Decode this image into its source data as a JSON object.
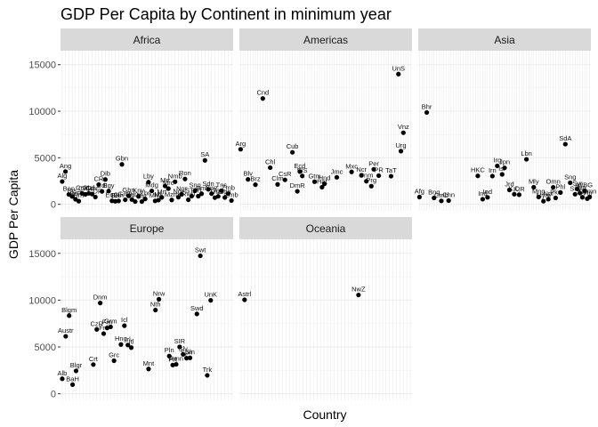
{
  "chart_data": {
    "type": "scatter",
    "title": "GDP Per Capita by Continent in minimum year",
    "xlabel": "Country",
    "ylabel": "GDP Per Capita",
    "ylim": [
      -700,
      16500
    ],
    "y_ticks": [
      0,
      5000,
      10000,
      15000
    ],
    "grid": true,
    "facets": [
      {
        "name": "Africa",
        "count": 52,
        "points": [
          {
            "i": 0,
            "y": 2449,
            "label": "Alg"
          },
          {
            "i": 1,
            "y": 3521,
            "label": "Ang"
          },
          {
            "i": 2,
            "y": 1063,
            "label": "Ben"
          },
          {
            "i": 3,
            "y": 851,
            "label": "Bts"
          },
          {
            "i": 4,
            "y": 543,
            "label": "BrF"
          },
          {
            "i": 5,
            "y": 339,
            "label": "Brn"
          },
          {
            "i": 6,
            "y": 1173,
            "label": "Cmr"
          },
          {
            "i": 7,
            "y": 1071,
            "label": "CAR"
          },
          {
            "i": 8,
            "y": 1179,
            "label": "Chd"
          },
          {
            "i": 9,
            "y": 1103,
            "label": "Cmr"
          },
          {
            "i": 10,
            "y": 781,
            "label": "CDR"
          },
          {
            "i": 11,
            "y": 2126,
            "label": "CR"
          },
          {
            "i": 12,
            "y": 1389,
            "label": "CdI"
          },
          {
            "i": 13,
            "y": 2670,
            "label": "Dib"
          },
          {
            "i": 14,
            "y": 1419,
            "label": "Egy"
          },
          {
            "i": 15,
            "y": 376,
            "label": "EqG"
          },
          {
            "i": 16,
            "y": 329,
            "label": "Ert"
          },
          {
            "i": 17,
            "y": 362,
            "label": "Eth"
          },
          {
            "i": 18,
            "y": 4293,
            "label": "Gbn"
          },
          {
            "i": 19,
            "y": 485,
            "label": "Gmb"
          },
          {
            "i": 20,
            "y": 911,
            "label": "Ghn"
          },
          {
            "i": 21,
            "y": 510,
            "label": "Gun"
          },
          {
            "i": 22,
            "y": 299,
            "label": "G-B"
          },
          {
            "i": 23,
            "y": 853,
            "label": "Kny"
          },
          {
            "i": 24,
            "y": 298,
            "label": "Lst"
          },
          {
            "i": 25,
            "y": 575,
            "label": "Lbr"
          },
          {
            "i": 26,
            "y": 2388,
            "label": "Lby"
          },
          {
            "i": 27,
            "y": 1443,
            "label": "Mdg"
          },
          {
            "i": 28,
            "y": 369,
            "label": "Mlw"
          },
          {
            "i": 29,
            "y": 452,
            "label": "Mli"
          },
          {
            "i": 30,
            "y": 743,
            "label": "Mrt"
          },
          {
            "i": 31,
            "y": 1968,
            "label": "Mrt"
          },
          {
            "i": 32,
            "y": 1688,
            "label": "Mrc"
          },
          {
            "i": 33,
            "y": 469,
            "label": "Mzm"
          },
          {
            "i": 34,
            "y": 2424,
            "label": "Nmb"
          },
          {
            "i": 35,
            "y": 762,
            "label": "Ngr"
          },
          {
            "i": 36,
            "y": 1077,
            "label": "Ngr"
          },
          {
            "i": 37,
            "y": 2719,
            "label": "Ron"
          },
          {
            "i": 38,
            "y": 493,
            "label": "Rwn"
          },
          {
            "i": 39,
            "y": 880,
            "label": "STP"
          },
          {
            "i": 40,
            "y": 1450,
            "label": "Sng"
          },
          {
            "i": 41,
            "y": 879,
            "label": "SrL"
          },
          {
            "i": 42,
            "y": 1136,
            "label": "Sml"
          },
          {
            "i": 43,
            "y": 4725,
            "label": "SA"
          },
          {
            "i": 44,
            "y": 1615,
            "label": "Sdn"
          },
          {
            "i": 45,
            "y": 1148,
            "label": "Swz"
          },
          {
            "i": 46,
            "y": 716,
            "label": "Tnz"
          },
          {
            "i": 47,
            "y": 859,
            "label": "Tog"
          },
          {
            "i": 48,
            "y": 1468,
            "label": "Tns"
          },
          {
            "i": 49,
            "y": 734,
            "label": "Ugn"
          },
          {
            "i": 50,
            "y": 1147,
            "label": "Zmb"
          },
          {
            "i": 51,
            "y": 406,
            "label": "Zmb"
          }
        ]
      },
      {
        "name": "Americas",
        "count": 70,
        "points": [
          {
            "i": 0,
            "y": 5911,
            "label": "Arg"
          },
          {
            "i": 3,
            "y": 2677,
            "label": "Blv"
          },
          {
            "i": 6,
            "y": 2109,
            "label": "Brz"
          },
          {
            "i": 9,
            "y": 11367,
            "label": "Cnd"
          },
          {
            "i": 12,
            "y": 3940,
            "label": "Chl"
          },
          {
            "i": 15,
            "y": 2144,
            "label": "Clm"
          },
          {
            "i": 18,
            "y": 2627,
            "label": "CsR"
          },
          {
            "i": 21,
            "y": 5587,
            "label": "Cub"
          },
          {
            "i": 23,
            "y": 1398,
            "label": "DmR"
          },
          {
            "i": 24,
            "y": 3522,
            "label": "Ecd"
          },
          {
            "i": 25,
            "y": 3048,
            "label": "ElS"
          },
          {
            "i": 30,
            "y": 2428,
            "label": "Gtm"
          },
          {
            "i": 33,
            "y": 1840,
            "label": "Hat"
          },
          {
            "i": 34,
            "y": 2194,
            "label": "Hnd"
          },
          {
            "i": 39,
            "y": 2899,
            "label": "Jmc"
          },
          {
            "i": 45,
            "y": 3478,
            "label": "Mxc"
          },
          {
            "i": 49,
            "y": 3112,
            "label": "Ncr"
          },
          {
            "i": 51,
            "y": 2480,
            "label": "Pnm"
          },
          {
            "i": 53,
            "y": 1952,
            "label": "Prg"
          },
          {
            "i": 54,
            "y": 3759,
            "label": "Per"
          },
          {
            "i": 56,
            "y": 3082,
            "label": "PR"
          },
          {
            "i": 61,
            "y": 3023,
            "label": "TaT"
          },
          {
            "i": 64,
            "y": 13990,
            "label": "UnS"
          },
          {
            "i": 65,
            "y": 5716,
            "label": "Urg"
          },
          {
            "i": 66,
            "y": 7689,
            "label": "Vnz"
          }
        ]
      },
      {
        "name": "Asia",
        "count": 71,
        "points": [
          {
            "i": 0,
            "y": 779,
            "label": "Afg"
          },
          {
            "i": 3,
            "y": 9867,
            "label": "Bhr"
          },
          {
            "i": 6,
            "y": 684,
            "label": "Bng"
          },
          {
            "i": 9,
            "y": 368,
            "label": "Cmb"
          },
          {
            "i": 12,
            "y": 400,
            "label": "Chn"
          },
          {
            "i": 24,
            "y": 3054,
            "label": "HKC"
          },
          {
            "i": 26,
            "y": 547,
            "label": "Ind"
          },
          {
            "i": 28,
            "y": 750,
            "label": "Ind"
          },
          {
            "i": 30,
            "y": 3035,
            "label": "Irn"
          },
          {
            "i": 32,
            "y": 4130,
            "label": "Irq"
          },
          {
            "i": 34,
            "y": 3216,
            "label": "Isr"
          },
          {
            "i": 35,
            "y": 3917,
            "label": "Jpn"
          },
          {
            "i": 37,
            "y": 1547,
            "label": "Jrd"
          },
          {
            "i": 39,
            "y": 1088,
            "label": "K,D"
          },
          {
            "i": 41,
            "y": 1031,
            "label": "K,R"
          },
          {
            "i": 44,
            "y": 4834,
            "label": "Lbn"
          },
          {
            "i": 47,
            "y": 1831,
            "label": "Mly"
          },
          {
            "i": 49,
            "y": 786,
            "label": "Mng"
          },
          {
            "i": 51,
            "y": 331,
            "label": "Mym"
          },
          {
            "i": 53,
            "y": 546,
            "label": "Npl"
          },
          {
            "i": 55,
            "y": 1828,
            "label": "Omn"
          },
          {
            "i": 56,
            "y": 684,
            "label": "Pks"
          },
          {
            "i": 58,
            "y": 1273,
            "label": "Phl"
          },
          {
            "i": 60,
            "y": 6459,
            "label": "SdA"
          },
          {
            "i": 62,
            "y": 2315,
            "label": "Sng"
          },
          {
            "i": 64,
            "y": 1084,
            "label": "SrL"
          },
          {
            "i": 65,
            "y": 1643,
            "label": "Syr"
          },
          {
            "i": 66,
            "y": 1207,
            "label": "Twn"
          },
          {
            "i": 67,
            "y": 757,
            "label": "Thl"
          },
          {
            "i": 68,
            "y": 1458,
            "label": "WBG"
          },
          {
            "i": 69,
            "y": 605,
            "label": "Vtn"
          },
          {
            "i": 70,
            "y": 781,
            "label": "Ymn"
          }
        ]
      },
      {
        "name": "Europe",
        "count": 50,
        "points": [
          {
            "i": 0,
            "y": 1601,
            "label": "Alb"
          },
          {
            "i": 1,
            "y": 6137,
            "label": "Austr"
          },
          {
            "i": 2,
            "y": 8343,
            "label": "Blgm"
          },
          {
            "i": 3,
            "y": 974,
            "label": "BaH"
          },
          {
            "i": 4,
            "y": 2444,
            "label": "Blgr"
          },
          {
            "i": 9,
            "y": 3119,
            "label": "Crt"
          },
          {
            "i": 10,
            "y": 6876,
            "label": "CzR"
          },
          {
            "i": 11,
            "y": 9692,
            "label": "Dnm"
          },
          {
            "i": 12,
            "y": 6424,
            "label": "Fnl"
          },
          {
            "i": 13,
            "y": 7030,
            "label": "Frn"
          },
          {
            "i": 14,
            "y": 7144,
            "label": "Grm"
          },
          {
            "i": 15,
            "y": 3531,
            "label": "Grc"
          },
          {
            "i": 17,
            "y": 5264,
            "label": "Hng"
          },
          {
            "i": 18,
            "y": 7268,
            "label": "Icl"
          },
          {
            "i": 19,
            "y": 5211,
            "label": "Irl"
          },
          {
            "i": 20,
            "y": 4931,
            "label": "Itl"
          },
          {
            "i": 25,
            "y": 2648,
            "label": "Mnt"
          },
          {
            "i": 27,
            "y": 8942,
            "label": "Nth"
          },
          {
            "i": 28,
            "y": 10095,
            "label": "Nrw"
          },
          {
            "i": 31,
            "y": 4029,
            "label": "Pln"
          },
          {
            "i": 32,
            "y": 3068,
            "label": "Prt"
          },
          {
            "i": 33,
            "y": 3144,
            "label": "Rmn"
          },
          {
            "i": 34,
            "y": 5000,
            "label": "SIR"
          },
          {
            "i": 35,
            "y": 4215,
            "label": "Slv"
          },
          {
            "i": 36,
            "y": 3800,
            "label": "Spn"
          },
          {
            "i": 37,
            "y": 3838,
            "label": "Sln"
          },
          {
            "i": 39,
            "y": 8527,
            "label": "Swd"
          },
          {
            "i": 40,
            "y": 14734,
            "label": "Swt"
          },
          {
            "i": 42,
            "y": 1969,
            "label": "Trk"
          },
          {
            "i": 43,
            "y": 9980,
            "label": "UnK"
          }
        ]
      },
      {
        "name": "Oceania",
        "count": 50,
        "points": [
          {
            "i": 1,
            "y": 10040,
            "label": "Astrl"
          },
          {
            "i": 34,
            "y": 10557,
            "label": "NwZ"
          }
        ]
      }
    ]
  }
}
